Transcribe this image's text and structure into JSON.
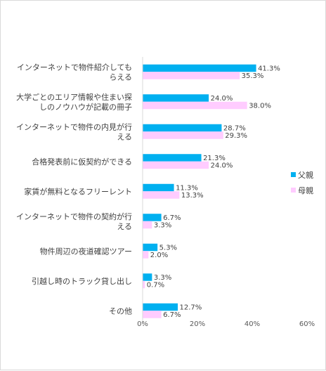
{
  "chart_data": {
    "type": "bar",
    "orientation": "horizontal",
    "categories": [
      [
        "インターネットで物件紹介しても",
        "らえる"
      ],
      [
        "大学ごとのエリア情報や住まい探",
        "しのノウハウが記載の冊子"
      ],
      [
        "インターネットで物件の内見が行",
        "える"
      ],
      [
        "合格発表前に仮契約ができる"
      ],
      [
        "家賃が無料となるフリーレント"
      ],
      [
        "インターネットで物件の契約が行",
        "える"
      ],
      [
        "物件周辺の夜道確認ツアー"
      ],
      [
        "引越し時のトラック貸し出し"
      ],
      [
        "その他"
      ]
    ],
    "series": [
      {
        "name": "父親",
        "color": "#00b0f0",
        "values": [
          41.3,
          24.0,
          28.7,
          21.3,
          11.3,
          6.7,
          5.3,
          3.3,
          12.7
        ],
        "labels": [
          "41.3%",
          "24.0%",
          "28.7%",
          "21.3%",
          "11.3%",
          "6.7%",
          "5.3%",
          "3.3%",
          "12.7%"
        ]
      },
      {
        "name": "母親",
        "color": "#ffccff",
        "values": [
          35.3,
          38.0,
          29.3,
          24.0,
          13.3,
          3.3,
          2.0,
          0.7,
          6.7
        ],
        "labels": [
          "35.3%",
          "38.0%",
          "29.3%",
          "24.0%",
          "13.3%",
          "3.3%",
          "2.0%",
          "0.7%",
          "6.7%"
        ]
      }
    ],
    "xlim": [
      0,
      60
    ],
    "xticks": [
      0,
      20,
      40,
      60
    ],
    "xtick_labels": [
      "0%",
      "20%",
      "40%",
      "60%"
    ],
    "title": "",
    "xlabel": "",
    "ylabel": "",
    "grid": false,
    "legend_position": "right"
  }
}
